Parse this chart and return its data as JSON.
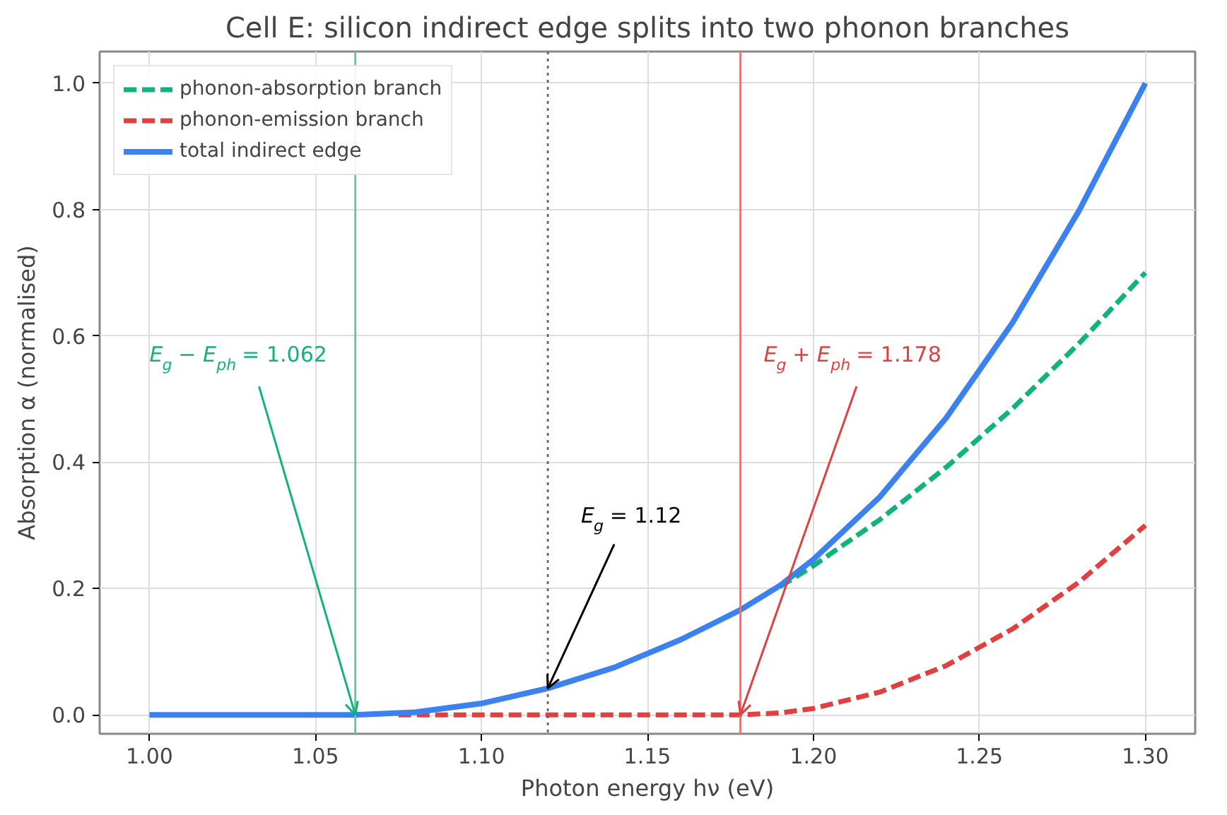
{
  "chart_data": {
    "type": "line",
    "title": "Cell E: silicon indirect edge splits into two phonon branches",
    "xlabel": "Photon energy hν (eV)",
    "ylabel": "Absorption α (normalised)",
    "series": [
      {
        "name": "phonon-absorption branch",
        "color": "#10b37a",
        "line_style": "dashed",
        "x": [
          1.19,
          1.2,
          1.22,
          1.24,
          1.26,
          1.28,
          1.3
        ],
        "values": [
          0.203,
          0.236,
          0.309,
          0.392,
          0.485,
          0.588,
          0.7
        ]
      },
      {
        "name": "phonon-emission branch",
        "color": "#e04040",
        "line_style": "dashed",
        "x": [
          1.075,
          1.08,
          1.12,
          1.16,
          1.178,
          1.19,
          1.2,
          1.22,
          1.24,
          1.26,
          1.28,
          1.3
        ],
        "values": [
          0,
          0,
          0,
          0,
          0,
          0.003,
          0.01,
          0.036,
          0.078,
          0.136,
          0.21,
          0.3
        ]
      },
      {
        "name": "total indirect edge",
        "color": "#3b82f0",
        "line_style": "solid",
        "x": [
          1.0,
          1.02,
          1.04,
          1.06,
          1.062,
          1.08,
          1.1,
          1.12,
          1.14,
          1.16,
          1.178,
          1.19,
          1.2,
          1.22,
          1.24,
          1.26,
          1.28,
          1.3
        ],
        "values": [
          0,
          0,
          0,
          0,
          0,
          0.004,
          0.018,
          0.042,
          0.075,
          0.119,
          0.166,
          0.205,
          0.246,
          0.345,
          0.47,
          0.621,
          0.798,
          1.0
        ]
      }
    ],
    "xlim": [
      0.985,
      1.315
    ],
    "ylim": [
      -0.03,
      1.05
    ],
    "xticks": [
      {
        "value": 1.0,
        "label": "1.00"
      },
      {
        "value": 1.05,
        "label": "1.05"
      },
      {
        "value": 1.1,
        "label": "1.10"
      },
      {
        "value": 1.15,
        "label": "1.15"
      },
      {
        "value": 1.2,
        "label": "1.20"
      },
      {
        "value": 1.25,
        "label": "1.25"
      },
      {
        "value": 1.3,
        "label": "1.30"
      }
    ],
    "yticks": [
      {
        "value": 0,
        "label": "0.0"
      },
      {
        "value": 0.2,
        "label": "0.2"
      },
      {
        "value": 0.4,
        "label": "0.4"
      },
      {
        "value": 0.6,
        "label": "0.6"
      },
      {
        "value": 0.8,
        "label": "0.8"
      },
      {
        "value": 1.0,
        "label": "1.0"
      }
    ],
    "ref_lines": [
      {
        "axis": "x",
        "value": 1.062,
        "color": "#5cc9a0",
        "line_style": "solid"
      },
      {
        "axis": "x",
        "value": 1.12,
        "color": "#666666",
        "line_style": "dotted"
      },
      {
        "axis": "x",
        "value": 1.178,
        "color": "#e57373",
        "line_style": "solid"
      }
    ],
    "annotations": [
      {
        "text": "E$_{g}$ − E$_{ph}$ = 1.062",
        "x": 1.062,
        "y": 0
      },
      {
        "text": "E$_{g}$ = 1.12",
        "x": 1.12,
        "y": 0.042
      },
      {
        "text": "E$_{g}$ + E$_{ph}$ = 1.178",
        "x": 1.178,
        "y": 0
      }
    ],
    "grid": true,
    "legend": "top left"
  }
}
